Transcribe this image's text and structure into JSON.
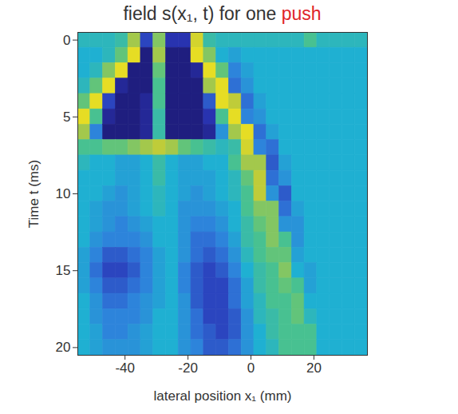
{
  "chart_data": {
    "type": "heatmap",
    "title": "field s(x₁, t) for one push",
    "title_highlight": "push",
    "x_label": "lateral position x₁ (mm)",
    "y_label": "Time t (ms)",
    "x_bins": [
      -55,
      -51,
      -47,
      -43,
      -39,
      -35,
      -31,
      -27,
      -23,
      -19,
      -15,
      -11,
      -7,
      -3,
      1,
      5,
      9,
      13,
      17,
      21,
      25,
      29,
      33,
      37
    ],
    "y_bins": [
      -0.5,
      0.5,
      1.5,
      2.5,
      3.5,
      4.5,
      5.5,
      6.5,
      7.5,
      8.5,
      9.5,
      10.5,
      11.5,
      12.5,
      13.5,
      14.5,
      15.5,
      16.5,
      17.5,
      18.5,
      19.5,
      20.5
    ],
    "values": [
      [
        0.1,
        0.1,
        0.1,
        0.2,
        0.6,
        -0.6,
        0.5,
        -0.7,
        -0.7,
        0.8,
        0.2,
        0.1,
        0.1,
        0.1,
        0.1,
        0.1,
        0.1,
        0.1,
        0.3,
        0.1,
        0.1,
        0.1,
        0.1
      ],
      [
        0,
        0,
        0.1,
        0.4,
        0.9,
        -0.9,
        0.6,
        -0.9,
        -0.9,
        0.9,
        0.5,
        0,
        -0.1,
        0,
        0,
        0,
        0,
        0,
        0,
        0,
        0,
        0,
        0
      ],
      [
        0,
        0.1,
        0.5,
        0.9,
        -0.9,
        -0.9,
        0.4,
        -0.9,
        -0.9,
        -0.8,
        0.9,
        0.4,
        -0.3,
        -0.1,
        0,
        0,
        0,
        0,
        0,
        0,
        0,
        0,
        0
      ],
      [
        0.1,
        0.4,
        0.9,
        -0.8,
        -0.9,
        -0.9,
        0.3,
        -0.9,
        -0.9,
        -0.9,
        0.6,
        0.9,
        -0.4,
        -0.2,
        0,
        0,
        0,
        0,
        0,
        0,
        0,
        0,
        0
      ],
      [
        0.4,
        0.9,
        -0.6,
        -0.9,
        -0.9,
        -0.8,
        0.3,
        -0.9,
        -0.9,
        -0.9,
        -0.5,
        0.9,
        0.7,
        -0.4,
        -0.1,
        0,
        0,
        0,
        0,
        0,
        0,
        0,
        0
      ],
      [
        0.9,
        0.3,
        -0.8,
        -0.9,
        -0.9,
        -0.8,
        0.2,
        -0.9,
        -0.9,
        -0.9,
        -0.7,
        0.3,
        0.9,
        -0.3,
        -0.2,
        0,
        0,
        0,
        0,
        0,
        0,
        0,
        0
      ],
      [
        0.6,
        -0.3,
        -0.9,
        -0.9,
        -0.9,
        -0.8,
        0.2,
        -0.9,
        -0.9,
        -0.9,
        -0.8,
        -0.2,
        0.6,
        0.9,
        -0.4,
        -0.1,
        0,
        0,
        0,
        0,
        0,
        0,
        0
      ],
      [
        0.3,
        0.3,
        0.4,
        0.4,
        0.5,
        0.6,
        0.7,
        0.6,
        0.4,
        0.3,
        0.2,
        0.1,
        0.2,
        0.8,
        -0.3,
        -0.4,
        0,
        0,
        0,
        0,
        0,
        0,
        0
      ],
      [
        0.1,
        0,
        0,
        -0.1,
        -0.1,
        0,
        0.2,
        0,
        -0.1,
        -0.1,
        0,
        0,
        0.3,
        0.6,
        0.6,
        -0.5,
        -0.1,
        0,
        0,
        0,
        0,
        0,
        0
      ],
      [
        0,
        0,
        0,
        -0.1,
        -0.1,
        0,
        0.2,
        0,
        -0.1,
        -0.1,
        -0.1,
        0,
        0.1,
        0.4,
        0.7,
        -0.4,
        -0.2,
        0,
        0,
        0,
        0,
        0,
        0
      ],
      [
        0,
        0,
        -0.1,
        -0.2,
        -0.1,
        0,
        0.1,
        0,
        -0.1,
        -0.2,
        -0.1,
        0,
        0.1,
        0.3,
        0.7,
        -0.2,
        -0.5,
        0,
        0,
        0,
        0,
        0,
        0
      ],
      [
        0,
        -0.1,
        -0.2,
        -0.2,
        -0.1,
        0,
        0.1,
        0,
        -0.2,
        -0.2,
        -0.2,
        -0.1,
        0,
        0.3,
        0.5,
        0.5,
        -0.4,
        -0.1,
        0,
        0,
        0,
        0,
        0
      ],
      [
        0,
        -0.1,
        -0.2,
        -0.3,
        -0.2,
        -0.1,
        0,
        0,
        -0.2,
        -0.3,
        -0.3,
        -0.2,
        0,
        0.2,
        0.4,
        0.5,
        -0.2,
        -0.2,
        0,
        0,
        0,
        0,
        0
      ],
      [
        0,
        -0.2,
        -0.3,
        -0.3,
        -0.3,
        -0.2,
        0,
        0,
        -0.2,
        -0.4,
        -0.4,
        -0.3,
        -0.1,
        0.2,
        0.3,
        0.5,
        0.3,
        -0.2,
        0,
        0,
        0,
        0,
        0
      ],
      [
        -0.1,
        -0.3,
        -0.5,
        -0.5,
        -0.4,
        -0.3,
        -0.1,
        0,
        -0.2,
        -0.4,
        -0.5,
        -0.4,
        -0.2,
        0.1,
        0.3,
        0.4,
        0.4,
        -0.1,
        0,
        0,
        0,
        0,
        0
      ],
      [
        -0.1,
        -0.4,
        -0.6,
        -0.6,
        -0.5,
        -0.3,
        -0.1,
        0,
        -0.3,
        -0.5,
        -0.6,
        -0.5,
        -0.3,
        0,
        0.2,
        0.3,
        0.5,
        0,
        -0.1,
        0,
        0,
        0,
        0
      ],
      [
        -0.1,
        -0.3,
        -0.5,
        -0.5,
        -0.4,
        -0.3,
        -0.1,
        0,
        -0.3,
        -0.5,
        -0.6,
        -0.6,
        -0.4,
        -0.1,
        0.2,
        0.3,
        0.4,
        0.3,
        -0.1,
        0,
        0,
        0,
        0
      ],
      [
        0,
        -0.2,
        -0.4,
        -0.4,
        -0.3,
        -0.2,
        -0.1,
        0,
        -0.2,
        -0.5,
        -0.6,
        -0.6,
        -0.4,
        -0.1,
        0.1,
        0.3,
        0.3,
        0.4,
        0,
        0,
        0,
        0,
        0
      ],
      [
        0,
        -0.2,
        -0.3,
        -0.3,
        -0.3,
        -0.2,
        0,
        0,
        -0.2,
        -0.4,
        -0.6,
        -0.6,
        -0.5,
        -0.2,
        0.1,
        0.2,
        0.3,
        0.4,
        0.1,
        0,
        0,
        0,
        0
      ],
      [
        0,
        -0.1,
        -0.3,
        -0.3,
        -0.2,
        -0.1,
        0,
        0,
        -0.2,
        -0.4,
        -0.5,
        -0.6,
        -0.5,
        -0.2,
        0,
        0.2,
        0.3,
        0.3,
        0.3,
        0,
        0,
        0,
        0
      ],
      [
        0,
        -0.1,
        -0.2,
        -0.2,
        -0.2,
        -0.1,
        0,
        0,
        -0.2,
        -0.3,
        -0.5,
        -0.5,
        -0.4,
        -0.2,
        0,
        0.1,
        0.3,
        0.3,
        0.3,
        0,
        0,
        0,
        0
      ]
    ],
    "xlim": [
      -55,
      37
    ],
    "ylim": [
      20.5,
      -0.5
    ],
    "xticks": [
      -40,
      -20,
      0,
      20
    ],
    "yticks": [
      0,
      5,
      10,
      15,
      20
    ],
    "zlim": [
      -1,
      1
    ]
  }
}
